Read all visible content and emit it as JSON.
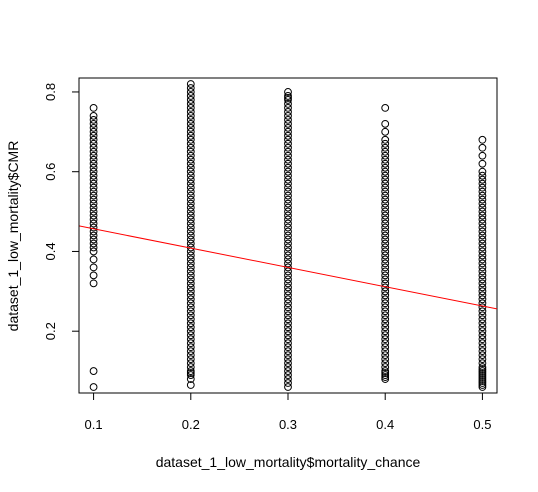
{
  "chart_data": {
    "type": "scatter",
    "title": "",
    "xlabel": "dataset_1_low_mortality$mortality_chance",
    "ylabel": "dataset_1_low_mortality$CMR",
    "xlim": [
      0.085,
      0.515
    ],
    "ylim": [
      0.045,
      0.835
    ],
    "x_ticks": [
      0.1,
      0.2,
      0.3,
      0.4,
      0.5
    ],
    "x_tick_labels": [
      "0.1",
      "0.2",
      "0.3",
      "0.4",
      "0.5"
    ],
    "y_ticks": [
      0.2,
      0.4,
      0.6,
      0.8
    ],
    "y_tick_labels": [
      "0.2",
      "0.4",
      "0.6",
      "0.8"
    ],
    "grid": false,
    "legend": "none",
    "point_style": "open-circle",
    "point_color": "#000000",
    "series": [
      {
        "x": [
          0.1,
          0.1,
          0.1,
          0.1,
          0.1,
          0.1,
          0.1,
          0.1,
          0.1,
          0.1,
          0.1,
          0.1,
          0.1,
          0.1,
          0.1,
          0.1,
          0.1,
          0.1,
          0.1,
          0.1,
          0.1,
          0.1,
          0.1,
          0.1,
          0.1,
          0.1,
          0.1,
          0.1,
          0.1,
          0.1,
          0.1,
          0.1,
          0.1,
          0.1,
          0.1,
          0.1,
          0.1,
          0.1,
          0.1,
          0.1,
          0.1,
          0.1
        ],
        "y": [
          0.06,
          0.1,
          0.32,
          0.34,
          0.36,
          0.38,
          0.4,
          0.42,
          0.44,
          0.45,
          0.46,
          0.48,
          0.5,
          0.51,
          0.52,
          0.53,
          0.54,
          0.55,
          0.56,
          0.57,
          0.58,
          0.59,
          0.6,
          0.61,
          0.62,
          0.63,
          0.64,
          0.65,
          0.66,
          0.67,
          0.68,
          0.69,
          0.7,
          0.71,
          0.72,
          0.73,
          0.74,
          0.76,
          0.47,
          0.49,
          0.43,
          0.41
        ]
      },
      {
        "x": [
          0.2,
          0.2,
          0.2,
          0.2,
          0.2,
          0.2,
          0.2,
          0.2,
          0.2,
          0.2,
          0.2,
          0.2,
          0.2,
          0.2,
          0.2,
          0.2,
          0.2,
          0.2,
          0.2,
          0.2,
          0.2,
          0.2,
          0.2,
          0.2,
          0.2,
          0.2,
          0.2,
          0.2,
          0.2,
          0.2,
          0.2,
          0.2,
          0.2,
          0.2,
          0.2,
          0.2,
          0.2,
          0.2,
          0.2,
          0.2,
          0.2,
          0.2,
          0.2,
          0.2,
          0.2,
          0.2,
          0.2,
          0.2,
          0.2,
          0.2,
          0.2,
          0.2,
          0.2,
          0.2,
          0.2,
          0.2,
          0.2,
          0.2,
          0.2,
          0.2,
          0.2,
          0.2,
          0.2,
          0.2,
          0.2,
          0.2,
          0.2,
          0.2,
          0.2,
          0.2,
          0.2,
          0.2,
          0.2,
          0.2,
          0.2,
          0.2,
          0.2
        ],
        "y": [
          0.08,
          0.09,
          0.1,
          0.12,
          0.14,
          0.16,
          0.18,
          0.2,
          0.22,
          0.24,
          0.26,
          0.28,
          0.3,
          0.32,
          0.33,
          0.34,
          0.35,
          0.36,
          0.37,
          0.38,
          0.39,
          0.4,
          0.41,
          0.42,
          0.43,
          0.44,
          0.45,
          0.46,
          0.47,
          0.48,
          0.49,
          0.5,
          0.51,
          0.52,
          0.53,
          0.54,
          0.55,
          0.56,
          0.57,
          0.58,
          0.59,
          0.6,
          0.61,
          0.62,
          0.63,
          0.64,
          0.65,
          0.66,
          0.67,
          0.68,
          0.69,
          0.7,
          0.71,
          0.72,
          0.73,
          0.74,
          0.75,
          0.76,
          0.77,
          0.78,
          0.8,
          0.82,
          0.11,
          0.13,
          0.15,
          0.17,
          0.19,
          0.21,
          0.23,
          0.25,
          0.27,
          0.29,
          0.31,
          0.79,
          0.81,
          0.065,
          0.095
        ]
      },
      {
        "x": [
          0.3,
          0.3,
          0.3,
          0.3,
          0.3,
          0.3,
          0.3,
          0.3,
          0.3,
          0.3,
          0.3,
          0.3,
          0.3,
          0.3,
          0.3,
          0.3,
          0.3,
          0.3,
          0.3,
          0.3,
          0.3,
          0.3,
          0.3,
          0.3,
          0.3,
          0.3,
          0.3,
          0.3,
          0.3,
          0.3,
          0.3,
          0.3,
          0.3,
          0.3,
          0.3,
          0.3,
          0.3,
          0.3,
          0.3,
          0.3,
          0.3,
          0.3,
          0.3,
          0.3,
          0.3,
          0.3,
          0.3,
          0.3,
          0.3,
          0.3,
          0.3,
          0.3,
          0.3,
          0.3,
          0.3,
          0.3,
          0.3,
          0.3,
          0.3,
          0.3,
          0.3,
          0.3,
          0.3,
          0.3,
          0.3,
          0.3,
          0.3,
          0.3,
          0.3,
          0.3,
          0.3,
          0.3,
          0.3,
          0.3,
          0.3,
          0.3
        ],
        "y": [
          0.06,
          0.07,
          0.08,
          0.09,
          0.1,
          0.11,
          0.12,
          0.13,
          0.14,
          0.15,
          0.16,
          0.17,
          0.18,
          0.19,
          0.2,
          0.21,
          0.22,
          0.23,
          0.24,
          0.25,
          0.26,
          0.27,
          0.28,
          0.29,
          0.3,
          0.31,
          0.32,
          0.33,
          0.34,
          0.35,
          0.36,
          0.37,
          0.38,
          0.39,
          0.4,
          0.41,
          0.42,
          0.43,
          0.44,
          0.45,
          0.46,
          0.47,
          0.48,
          0.49,
          0.5,
          0.51,
          0.52,
          0.53,
          0.54,
          0.55,
          0.56,
          0.57,
          0.58,
          0.59,
          0.6,
          0.61,
          0.62,
          0.63,
          0.64,
          0.65,
          0.66,
          0.67,
          0.68,
          0.69,
          0.7,
          0.71,
          0.72,
          0.73,
          0.74,
          0.75,
          0.76,
          0.77,
          0.78,
          0.79,
          0.8,
          0.785
        ]
      },
      {
        "x": [
          0.4,
          0.4,
          0.4,
          0.4,
          0.4,
          0.4,
          0.4,
          0.4,
          0.4,
          0.4,
          0.4,
          0.4,
          0.4,
          0.4,
          0.4,
          0.4,
          0.4,
          0.4,
          0.4,
          0.4,
          0.4,
          0.4,
          0.4,
          0.4,
          0.4,
          0.4,
          0.4,
          0.4,
          0.4,
          0.4,
          0.4,
          0.4,
          0.4,
          0.4,
          0.4,
          0.4,
          0.4,
          0.4,
          0.4,
          0.4,
          0.4,
          0.4,
          0.4,
          0.4,
          0.4,
          0.4,
          0.4,
          0.4,
          0.4,
          0.4,
          0.4,
          0.4,
          0.4,
          0.4,
          0.4,
          0.4,
          0.4,
          0.4,
          0.4,
          0.4,
          0.4,
          0.4,
          0.4,
          0.4,
          0.4,
          0.4
        ],
        "y": [
          0.08,
          0.09,
          0.1,
          0.11,
          0.12,
          0.13,
          0.14,
          0.15,
          0.16,
          0.17,
          0.18,
          0.19,
          0.2,
          0.21,
          0.22,
          0.23,
          0.24,
          0.25,
          0.26,
          0.27,
          0.28,
          0.29,
          0.3,
          0.31,
          0.32,
          0.33,
          0.34,
          0.35,
          0.36,
          0.37,
          0.38,
          0.39,
          0.4,
          0.41,
          0.42,
          0.43,
          0.44,
          0.45,
          0.46,
          0.47,
          0.48,
          0.49,
          0.5,
          0.51,
          0.52,
          0.53,
          0.54,
          0.55,
          0.56,
          0.57,
          0.58,
          0.59,
          0.6,
          0.61,
          0.62,
          0.63,
          0.64,
          0.65,
          0.66,
          0.67,
          0.68,
          0.7,
          0.72,
          0.76,
          0.085,
          0.095
        ]
      },
      {
        "x": [
          0.5,
          0.5,
          0.5,
          0.5,
          0.5,
          0.5,
          0.5,
          0.5,
          0.5,
          0.5,
          0.5,
          0.5,
          0.5,
          0.5,
          0.5,
          0.5,
          0.5,
          0.5,
          0.5,
          0.5,
          0.5,
          0.5,
          0.5,
          0.5,
          0.5,
          0.5,
          0.5,
          0.5,
          0.5,
          0.5,
          0.5,
          0.5,
          0.5,
          0.5,
          0.5,
          0.5,
          0.5,
          0.5,
          0.5,
          0.5,
          0.5,
          0.5,
          0.5,
          0.5,
          0.5,
          0.5,
          0.5,
          0.5,
          0.5,
          0.5,
          0.5,
          0.5,
          0.5,
          0.5,
          0.5,
          0.5,
          0.5,
          0.5,
          0.5,
          0.5,
          0.5,
          0.5,
          0.5,
          0.5
        ],
        "y": [
          0.06,
          0.07,
          0.08,
          0.09,
          0.1,
          0.11,
          0.12,
          0.13,
          0.14,
          0.15,
          0.16,
          0.17,
          0.18,
          0.19,
          0.2,
          0.21,
          0.22,
          0.23,
          0.24,
          0.25,
          0.26,
          0.27,
          0.28,
          0.29,
          0.3,
          0.31,
          0.32,
          0.33,
          0.34,
          0.35,
          0.36,
          0.37,
          0.38,
          0.39,
          0.4,
          0.41,
          0.42,
          0.43,
          0.44,
          0.45,
          0.46,
          0.47,
          0.48,
          0.49,
          0.5,
          0.51,
          0.52,
          0.53,
          0.54,
          0.55,
          0.56,
          0.57,
          0.58,
          0.59,
          0.6,
          0.62,
          0.64,
          0.66,
          0.68,
          0.065,
          0.075,
          0.085,
          0.095,
          0.105
        ]
      }
    ],
    "fit_line": {
      "color": "#ff0000",
      "intercept": 0.5052,
      "slope": -0.4841
    }
  }
}
